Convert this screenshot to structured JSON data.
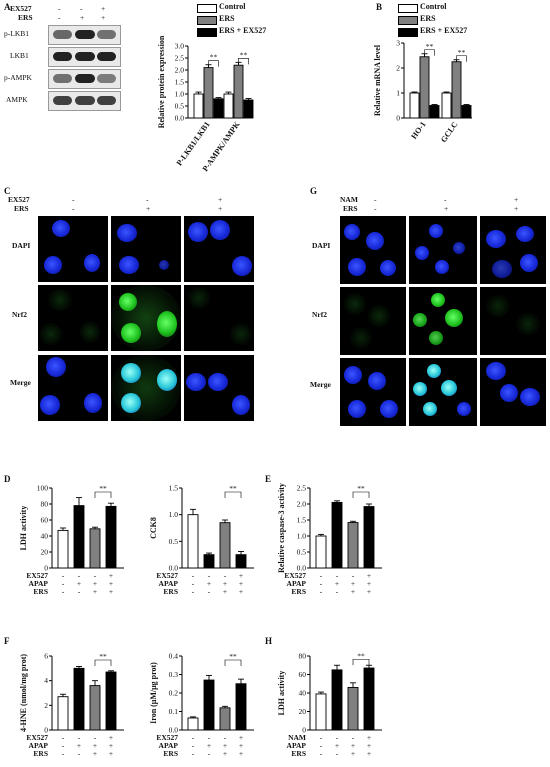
{
  "panels": {
    "A": "A",
    "B": "B",
    "C": "C",
    "G": "G",
    "D": "D",
    "E": "E",
    "F": "F",
    "H": "H"
  },
  "panel_a_blot": {
    "header_rows": [
      "EX527",
      "ERS"
    ],
    "header_marks": [
      [
        "-",
        "-",
        "+"
      ],
      [
        "-",
        "+",
        "+"
      ]
    ],
    "rows": [
      "p-LKB1",
      "LKB1",
      "p-AMPK",
      "AMPK"
    ]
  },
  "legend_three": [
    "Control",
    "ERS",
    "ERS + EX527"
  ],
  "significance": "**",
  "ifx_c": {
    "header_rows": [
      "EX527",
      "ERS"
    ],
    "marks": [
      [
        "-",
        "-",
        "+"
      ],
      [
        "-",
        "+",
        "+"
      ]
    ],
    "row_labels": [
      "DAPI",
      "Nrf2",
      "Merge"
    ]
  },
  "ifx_g": {
    "header_rows": [
      "NAM",
      "ERS"
    ],
    "marks": [
      [
        "-",
        "-",
        "+"
      ],
      [
        "-",
        "+",
        "+"
      ]
    ],
    "row_labels": [
      "DAPI",
      "Nrf2",
      "Merge"
    ]
  },
  "treatment_rows_ex527": [
    "EX527",
    "APAP",
    "ERS"
  ],
  "treatment_rows_nam": [
    "NAM",
    "APAP",
    "ERS"
  ],
  "treatment_marks": [
    [
      "-",
      "-",
      "-",
      "+"
    ],
    [
      "-",
      "+",
      "+",
      "+"
    ],
    [
      "-",
      "-",
      "+",
      "+"
    ]
  ],
  "colors": {
    "control": "#ffffff",
    "ers": "#808080",
    "ex527": "#000000",
    "apap": "#000000"
  },
  "chart_data": [
    {
      "id": "A",
      "type": "bar",
      "categories": [
        "P-LKB1/LKB1",
        "P-AMPK/AMPK"
      ],
      "series": [
        {
          "name": "Control",
          "values": [
            1.0,
            1.0
          ]
        },
        {
          "name": "ERS",
          "values": [
            2.1,
            2.2
          ]
        },
        {
          "name": "ERS + EX527",
          "values": [
            0.8,
            0.75
          ]
        }
      ],
      "errors": [
        [
          0.08,
          0.08
        ],
        [
          0.12,
          0.12
        ],
        [
          0.05,
          0.06
        ]
      ],
      "ylabel": "Relative protein expression",
      "ylim": [
        0,
        3.0
      ],
      "yticks": [
        "0.0",
        "0.5",
        "1.0",
        "1.5",
        "2.0",
        "2.5",
        "3.0"
      ]
    },
    {
      "id": "B",
      "type": "bar",
      "categories": [
        "HO-1",
        "GCLC"
      ],
      "series": [
        {
          "name": "Control",
          "values": [
            1.0,
            1.0
          ]
        },
        {
          "name": "ERS",
          "values": [
            2.45,
            2.25
          ]
        },
        {
          "name": "ERS + EX527",
          "values": [
            0.5,
            0.5
          ]
        }
      ],
      "errors": [
        [
          0.04,
          0.04
        ],
        [
          0.12,
          0.08
        ],
        [
          0.04,
          0.04
        ]
      ],
      "ylabel": "Relative mRNA level",
      "ylim": [
        0,
        3
      ],
      "yticks": [
        "0",
        "1",
        "2",
        "3"
      ]
    },
    {
      "id": "D1",
      "type": "bar",
      "values": [
        47,
        78,
        49,
        77
      ],
      "errors": [
        3,
        10,
        2,
        4
      ],
      "ylabel": "LDH activity",
      "ylim": [
        0,
        100
      ],
      "yticks": [
        "0",
        "20",
        "40",
        "60",
        "80",
        "100"
      ]
    },
    {
      "id": "D2",
      "type": "bar",
      "values": [
        1.0,
        0.25,
        0.85,
        0.25
      ],
      "errors": [
        0.1,
        0.03,
        0.05,
        0.06
      ],
      "ylabel": "CCK8",
      "ylim": [
        0,
        1.5
      ],
      "yticks": [
        "0.0",
        "0.5",
        "1.0",
        "1.5"
      ]
    },
    {
      "id": "E",
      "type": "bar",
      "values": [
        1.0,
        2.05,
        1.42,
        1.92
      ],
      "errors": [
        0.05,
        0.05,
        0.04,
        0.08
      ],
      "ylabel": "Relative caspase-3 activity",
      "ylim": [
        0,
        2.5
      ],
      "yticks": [
        "0.0",
        "0.5",
        "1.0",
        "1.5",
        "2.0",
        "2.5"
      ]
    },
    {
      "id": "F1",
      "type": "bar",
      "values": [
        2.7,
        5.0,
        3.6,
        4.7
      ],
      "errors": [
        0.2,
        0.15,
        0.4,
        0.1
      ],
      "ylabel": "4-HNE (nmol/mg prot)",
      "ylim": [
        0,
        6
      ],
      "yticks": [
        "0",
        "2",
        "4",
        "6"
      ]
    },
    {
      "id": "F2",
      "type": "bar",
      "values": [
        0.065,
        0.27,
        0.12,
        0.25
      ],
      "errors": [
        0.006,
        0.025,
        0.008,
        0.025
      ],
      "ylabel": "Iron (μM/μg prot)",
      "ylim": [
        0,
        0.4
      ],
      "yticks": [
        "0.0",
        "0.1",
        "0.2",
        "0.3",
        "0.4"
      ]
    },
    {
      "id": "H",
      "type": "bar",
      "values": [
        39,
        65,
        46,
        67
      ],
      "errors": [
        2,
        5,
        5,
        3
      ],
      "ylabel": "LDH activity",
      "ylim": [
        0,
        80
      ],
      "yticks": [
        "0",
        "20",
        "40",
        "60",
        "80"
      ]
    }
  ]
}
